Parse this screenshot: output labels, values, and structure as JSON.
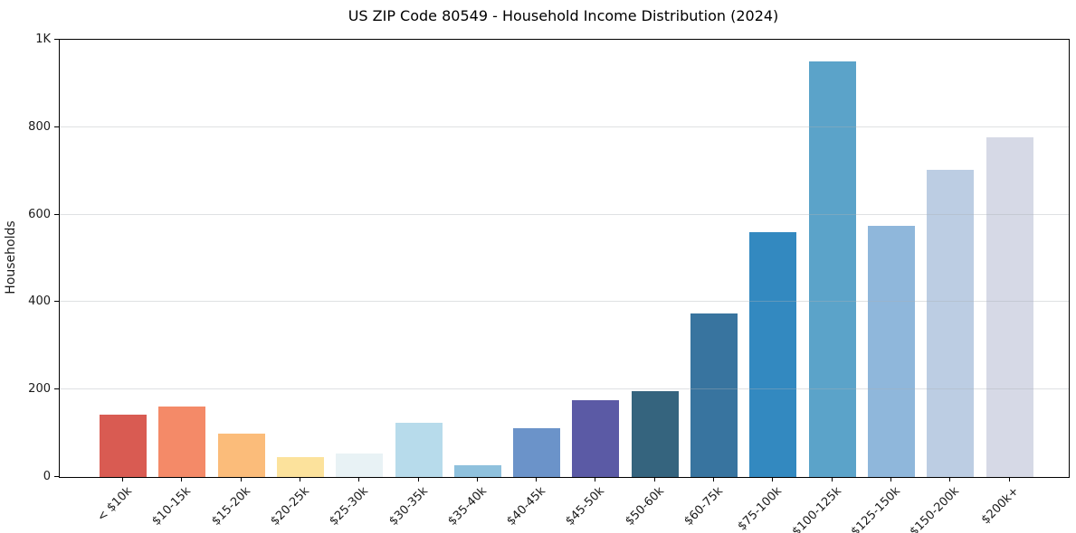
{
  "chart_data": {
    "type": "bar",
    "title": "US ZIP Code 80549 - Household Income Distribution (2024)",
    "xlabel": "",
    "ylabel": "Households",
    "ylim": [
      0,
      1000
    ],
    "grid": "horizontal-faint-over-bars",
    "legend": "none",
    "yticks": [
      {
        "value": 0,
        "label": "0"
      },
      {
        "value": 200,
        "label": "200"
      },
      {
        "value": 400,
        "label": "400"
      },
      {
        "value": 600,
        "label": "600"
      },
      {
        "value": 800,
        "label": "800"
      },
      {
        "value": 1000,
        "label": "1K"
      }
    ],
    "categories": [
      "< $10k",
      "$10-15k",
      "$15-20k",
      "$20-25k",
      "$25-30k",
      "$30-35k",
      "$35-40k",
      "$40-45k",
      "$45-50k",
      "$50-60k",
      "$60-75k",
      "$75-100k",
      "$100-125k",
      "$125-150k",
      "$150-200k",
      "$200k+"
    ],
    "values": [
      142,
      162,
      100,
      46,
      54,
      125,
      27,
      112,
      175,
      196,
      374,
      560,
      950,
      574,
      702,
      776
    ],
    "bar_colors": [
      "#d95b52",
      "#f48a68",
      "#fbbc7a",
      "#fce29c",
      "#e8f2f5",
      "#b7dbeb",
      "#8fc1dd",
      "#6b93c9",
      "#5b5aa5",
      "#35647e",
      "#38749f",
      "#3389c0",
      "#5ba3c9",
      "#8fb7db",
      "#bccde3",
      "#d6d9e6"
    ]
  }
}
